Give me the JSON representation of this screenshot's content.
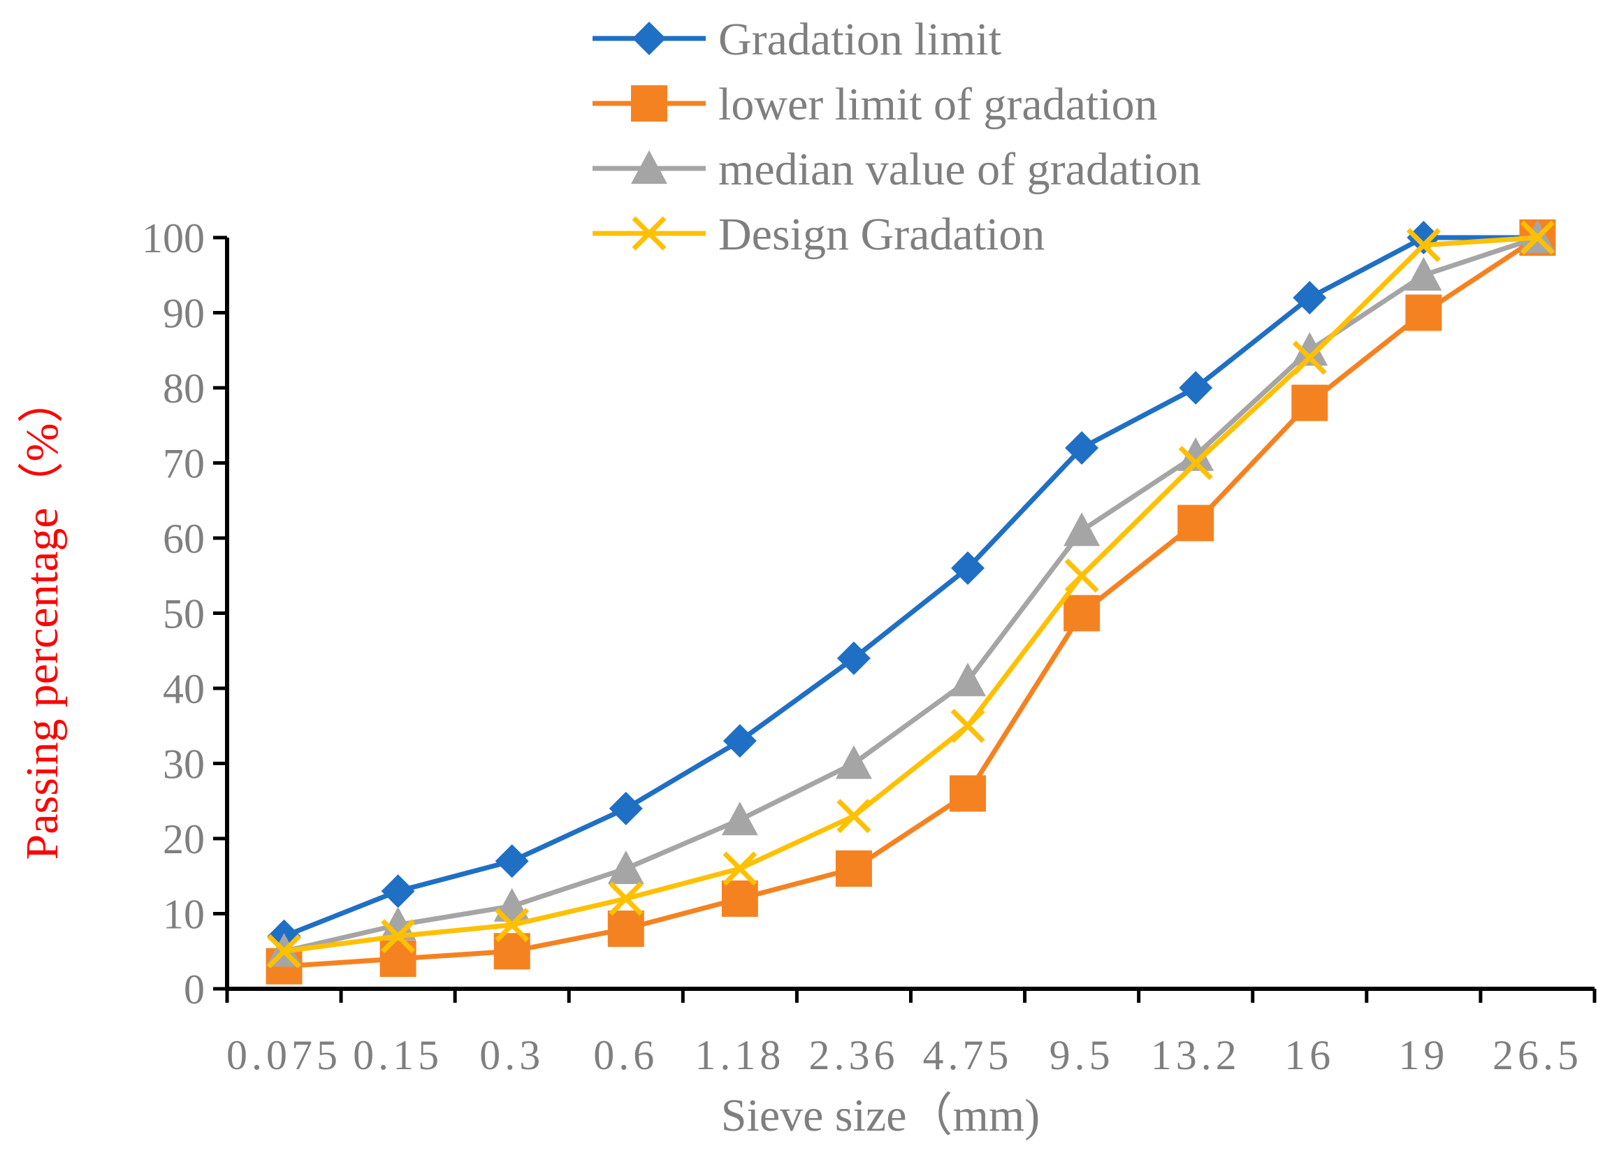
{
  "chart_data": {
    "type": "line",
    "title": "",
    "xlabel": "Sieve size（mm)",
    "ylabel": "Passing percentage（%）",
    "ylabel_color": "#ff0000",
    "categories": [
      "0.075",
      "0.15",
      "0.3",
      "0.6",
      "1.18",
      "2.36",
      "4.75",
      "9.5",
      "13.2",
      "16",
      "19",
      "26.5"
    ],
    "y_ticks": [
      "0",
      "10",
      "20",
      "30",
      "40",
      "50",
      "60",
      "70",
      "80",
      "90",
      "100"
    ],
    "ylim": [
      0,
      100
    ],
    "grid": false,
    "legend_position": "top",
    "series": [
      {
        "name": "Gradation limit",
        "color": "#1f6fc5",
        "marker": "diamond",
        "values": [
          7,
          13,
          17,
          24,
          33,
          44,
          56,
          72,
          80,
          92,
          100,
          100
        ]
      },
      {
        "name": "lower limit of gradation",
        "color": "#f58220",
        "marker": "square",
        "values": [
          3,
          4,
          5,
          8,
          12,
          16,
          26,
          50,
          62,
          78,
          90,
          100
        ]
      },
      {
        "name": "median value of gradation",
        "color": "#a5a5a5",
        "marker": "triangle",
        "values": [
          5,
          8.5,
          11,
          16,
          22.5,
          30,
          41,
          61,
          71,
          85,
          95,
          100
        ]
      },
      {
        "name": "Design Gradation",
        "color": "#ffc000",
        "marker": "x",
        "values": [
          5,
          7,
          8.5,
          12,
          16,
          23,
          35,
          55,
          70,
          84,
          99,
          100
        ]
      }
    ]
  }
}
